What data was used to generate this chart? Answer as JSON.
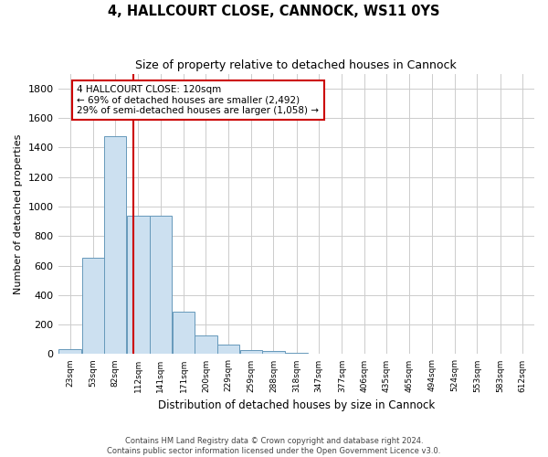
{
  "title1": "4, HALLCOURT CLOSE, CANNOCK, WS11 0YS",
  "title2": "Size of property relative to detached houses in Cannock",
  "xlabel": "Distribution of detached houses by size in Cannock",
  "ylabel": "Number of detached properties",
  "bins": [
    23,
    53,
    82,
    112,
    141,
    171,
    200,
    229,
    259,
    288,
    318,
    347,
    377,
    406,
    435,
    465,
    494,
    524,
    553,
    583,
    612
  ],
  "values": [
    35,
    650,
    1475,
    935,
    935,
    290,
    125,
    65,
    25,
    20,
    10,
    5,
    3,
    2,
    1,
    1,
    1,
    0,
    0,
    0
  ],
  "bar_color": "#cce0f0",
  "bar_edge_color": "#6699bb",
  "vline_x": 120,
  "vline_color": "#cc0000",
  "annotation_line1": "4 HALLCOURT CLOSE: 120sqm",
  "annotation_line2": "← 69% of detached houses are smaller (2,492)",
  "annotation_line3": "29% of semi-detached houses are larger (1,058) →",
  "annotation_box_color": "#cc0000",
  "ylim": [
    0,
    1900
  ],
  "yticks": [
    0,
    200,
    400,
    600,
    800,
    1000,
    1200,
    1400,
    1600,
    1800
  ],
  "footer1": "Contains HM Land Registry data © Crown copyright and database right 2024.",
  "footer2": "Contains public sector information licensed under the Open Government Licence v3.0.",
  "bg_color": "#ffffff",
  "plot_bg_color": "#ffffff",
  "grid_color": "#cccccc"
}
